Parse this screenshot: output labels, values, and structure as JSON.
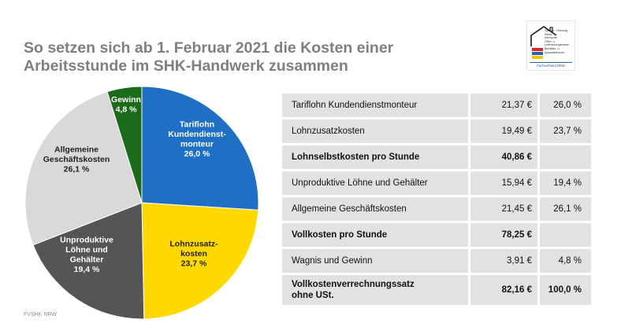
{
  "title": {
    "line1": "So setzen sich ab 1. Februar 2021 die Kosten einer",
    "line2": "Arbeitsstunde im SHK-Handwerk zusammen"
  },
  "logo": {
    "line1": "Sanitär · Heizung · Klima",
    "line2": "Klempner",
    "line3": "Ofen- u. Luftheizungsbauer",
    "line4": "Behälter- u. Apparatebauer",
    "footer": "Fachverband NRW"
  },
  "chart_data": {
    "type": "pie",
    "start_angle_deg": 0,
    "direction": "clockwise",
    "slices": [
      {
        "label_lines": [
          "Tariflohn",
          "Kundendienst-",
          "monteur",
          "26,0 %"
        ],
        "value": 26.0,
        "color": "#1f6fc4",
        "text_color": "#ffffff"
      },
      {
        "label_lines": [
          "Lohnzusatz-",
          "kosten",
          "23,7 %"
        ],
        "value": 23.7,
        "color": "#ffd800",
        "text_color": "#222222"
      },
      {
        "label_lines": [
          "Unproduktive",
          "Löhne und",
          "Gehälter",
          "19,4 %"
        ],
        "value": 19.4,
        "color": "#555555",
        "text_color": "#ffffff"
      },
      {
        "label_lines": [
          "Allgemeine",
          "Geschäftskosten",
          "26,1 %"
        ],
        "value": 26.1,
        "color": "#d9d9d9",
        "text_color": "#222222"
      },
      {
        "label_lines": [
          "Gewinn",
          "4,8 %"
        ],
        "value": 4.8,
        "color": "#1b6b1b",
        "text_color": "#ffffff"
      }
    ]
  },
  "table": {
    "rows": [
      {
        "label": "Tariflohn Kundendienstmonteur",
        "amount": "21,37 €",
        "percent": "26,0 %",
        "bold": false
      },
      {
        "label": "Lohnzusatzkosten",
        "amount": "19,49 €",
        "percent": "23,7 %",
        "bold": false
      },
      {
        "label": "Lohnselbstkosten pro Stunde",
        "amount": "40,86 €",
        "percent": "",
        "bold": true
      },
      {
        "label": "Unproduktive Löhne und Gehälter",
        "amount": "15,94 €",
        "percent": "19,4 %",
        "bold": false
      },
      {
        "label": "Allgemeine Geschäftskosten",
        "amount": "21,45 €",
        "percent": "26,1 %",
        "bold": false
      },
      {
        "label": "Vollkosten pro Stunde",
        "amount": "78,25 €",
        "percent": "",
        "bold": true
      },
      {
        "label": "Wagnis und Gewinn",
        "amount": "3,91 €",
        "percent": "4,8 %",
        "bold": false
      },
      {
        "label_lines": [
          "Vollkostenverrechnungssatz",
          "ohne USt."
        ],
        "amount": "82,16 €",
        "percent": "100,0 %",
        "bold": true
      }
    ]
  },
  "footer": "FVSHK NRW"
}
